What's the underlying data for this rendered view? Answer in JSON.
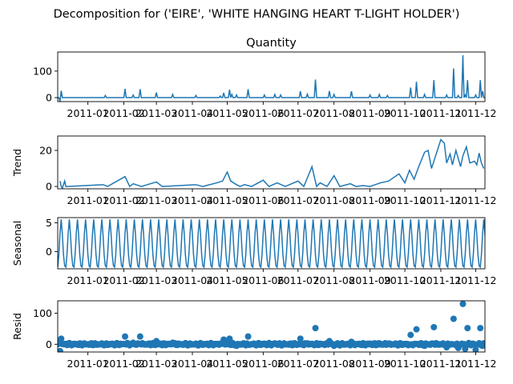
{
  "figure": {
    "suptitle": "Decomposition for ('EIRE', 'WHITE HANGING HEART T-LIGHT HOLDER')"
  },
  "colors": {
    "line": "#1f77b4",
    "marker": "#1f77b4",
    "zero_line": "#000000"
  },
  "chart_data": [
    {
      "type": "line",
      "title": "Quantity",
      "ylabel": "",
      "xlim": [
        "2010-12-06",
        "2011-12-09"
      ],
      "ylim": [
        -15,
        172
      ],
      "yticks": [
        0,
        100
      ],
      "xticks": [
        "2011-01",
        "2011-02",
        "2011-03",
        "2011-04",
        "2011-05",
        "2011-06",
        "2011-07",
        "2011-08",
        "2011-09",
        "2011-10",
        "2011-11",
        "2011-12"
      ],
      "x": [
        "2010-12-08",
        "2010-12-09",
        "2011-01-16",
        "2011-02-02",
        "2011-02-09",
        "2011-02-15",
        "2011-03-01",
        "2011-03-15",
        "2011-04-04",
        "2011-04-25",
        "2011-04-28",
        "2011-05-03",
        "2011-05-05",
        "2011-05-09",
        "2011-05-19",
        "2011-06-02",
        "2011-06-11",
        "2011-06-16",
        "2011-07-03",
        "2011-07-09",
        "2011-07-16",
        "2011-07-28",
        "2011-08-01",
        "2011-08-16",
        "2011-09-01",
        "2011-09-09",
        "2011-09-16",
        "2011-10-06",
        "2011-10-11",
        "2011-10-18",
        "2011-10-26",
        "2011-11-06",
        "2011-11-12",
        "2011-11-16",
        "2011-11-20",
        "2011-11-22",
        "2011-11-24",
        "2011-12-01",
        "2011-12-05",
        "2011-12-07"
      ],
      "series": [
        {
          "values": [
            -15,
            26,
            8,
            33,
            10,
            32,
            19,
            12,
            8,
            6,
            18,
            30,
            12,
            10,
            32,
            10,
            12,
            10,
            24,
            13,
            68,
            25,
            12,
            24,
            10,
            12,
            8,
            38,
            60,
            12,
            66,
            10,
            110,
            8,
            160,
            10,
            66,
            10,
            66,
            25
          ]
        }
      ]
    },
    {
      "type": "line",
      "title": "",
      "ylabel": "Trend",
      "xlim": [
        "2010-12-06",
        "2011-12-09"
      ],
      "ylim": [
        -1.3,
        28
      ],
      "yticks": [
        0,
        20
      ],
      "xticks": [
        "2011-01",
        "2011-02",
        "2011-03",
        "2011-04",
        "2011-05",
        "2011-06",
        "2011-07",
        "2011-08",
        "2011-09",
        "2011-10",
        "2011-11",
        "2011-12"
      ],
      "x": [
        "2010-12-08",
        "2010-12-09",
        "2010-12-10",
        "2010-12-12",
        "2010-12-13",
        "2010-12-14",
        "2011-01-14",
        "2011-01-18",
        "2011-02-02",
        "2011-02-06",
        "2011-02-09",
        "2011-02-16",
        "2011-03-01",
        "2011-03-06",
        "2011-04-04",
        "2011-04-10",
        "2011-04-22",
        "2011-04-27",
        "2011-05-01",
        "2011-05-04",
        "2011-05-09",
        "2011-05-12",
        "2011-05-16",
        "2011-05-22",
        "2011-06-01",
        "2011-06-06",
        "2011-06-13",
        "2011-06-20",
        "2011-07-01",
        "2011-07-06",
        "2011-07-13",
        "2011-07-17",
        "2011-07-20",
        "2011-07-26",
        "2011-08-01",
        "2011-08-06",
        "2011-08-15",
        "2011-08-20",
        "2011-08-26",
        "2011-09-01",
        "2011-09-10",
        "2011-09-17",
        "2011-09-26",
        "2011-10-01",
        "2011-10-05",
        "2011-10-09",
        "2011-10-13",
        "2011-10-18",
        "2011-10-21",
        "2011-10-24",
        "2011-11-01",
        "2011-11-04",
        "2011-11-06",
        "2011-11-09",
        "2011-11-11",
        "2011-11-14",
        "2011-11-18",
        "2011-11-20",
        "2011-11-23",
        "2011-11-26",
        "2011-11-30",
        "2011-12-02",
        "2011-12-04",
        "2011-12-06",
        "2011-12-08"
      ],
      "series": [
        {
          "values": [
            3,
            0,
            -1,
            3,
            0,
            0,
            1,
            0,
            5.5,
            0,
            1.5,
            0,
            2.5,
            0,
            1,
            0,
            2,
            3,
            8,
            3,
            1,
            0,
            1,
            0,
            3.5,
            0,
            2,
            0,
            3,
            0,
            11,
            0,
            2,
            0,
            6,
            0,
            1.5,
            0,
            0.5,
            0,
            2,
            3,
            7,
            2,
            9,
            4,
            11,
            19,
            20,
            10,
            26,
            24,
            13,
            18,
            12,
            20,
            11,
            17,
            22,
            13,
            14,
            12,
            18.5,
            13,
            10
          ]
        }
      ]
    },
    {
      "type": "line",
      "title": "",
      "ylabel": "Seasonal",
      "xlim": [
        "2010-12-06",
        "2011-12-09"
      ],
      "ylim": [
        -3,
        5.9
      ],
      "yticks": [
        0,
        5
      ],
      "xticks": [
        "2011-01",
        "2011-02",
        "2011-03",
        "2011-04",
        "2011-05",
        "2011-06",
        "2011-07",
        "2011-08",
        "2011-09",
        "2011-10",
        "2011-11",
        "2011-12"
      ],
      "period_days": 7,
      "phase_start": "2010-12-06",
      "pattern": [
        -2.7,
        -0.5,
        3.2,
        5.6,
        3.0,
        -0.6,
        -2.5
      ],
      "series": [
        {
          "values": [
            -2.7,
            -0.5,
            3.2,
            5.6,
            3.0,
            -0.6,
            -2.5
          ]
        }
      ]
    },
    {
      "type": "scatter",
      "title": "",
      "ylabel": "Resid",
      "xlim": [
        "2010-12-06",
        "2011-12-09"
      ],
      "ylim": [
        -25,
        140
      ],
      "yticks": [
        0,
        100
      ],
      "xticks": [
        "2011-01",
        "2011-02",
        "2011-03",
        "2011-04",
        "2011-05",
        "2011-06",
        "2011-07",
        "2011-08",
        "2011-09",
        "2011-10",
        "2011-11",
        "2011-12"
      ],
      "baseline": 0,
      "x": [
        "2010-12-08",
        "2010-12-09",
        "2011-01-16",
        "2011-02-02",
        "2011-02-09",
        "2011-02-15",
        "2011-03-01",
        "2011-03-15",
        "2011-04-04",
        "2011-04-25",
        "2011-04-28",
        "2011-05-03",
        "2011-05-05",
        "2011-05-09",
        "2011-05-19",
        "2011-06-02",
        "2011-06-11",
        "2011-06-16",
        "2011-07-03",
        "2011-07-09",
        "2011-07-16",
        "2011-07-28",
        "2011-08-01",
        "2011-08-16",
        "2011-09-01",
        "2011-09-09",
        "2011-09-16",
        "2011-10-06",
        "2011-10-11",
        "2011-10-18",
        "2011-10-26",
        "2011-11-06",
        "2011-11-12",
        "2011-11-16",
        "2011-11-20",
        "2011-11-22",
        "2011-11-24",
        "2011-12-01",
        "2011-12-05",
        "2011-12-07"
      ],
      "series": [
        {
          "values": [
            -22,
            18,
            0,
            25,
            5,
            25,
            10,
            5,
            2,
            0,
            15,
            18,
            5,
            -5,
            25,
            2,
            3,
            0,
            18,
            3,
            52,
            10,
            -5,
            8,
            2,
            3,
            0,
            30,
            48,
            -5,
            55,
            -10,
            82,
            -12,
            130,
            -15,
            52,
            -18,
            52,
            -5
          ]
        }
      ],
      "noise_amplitude": 4
    }
  ]
}
